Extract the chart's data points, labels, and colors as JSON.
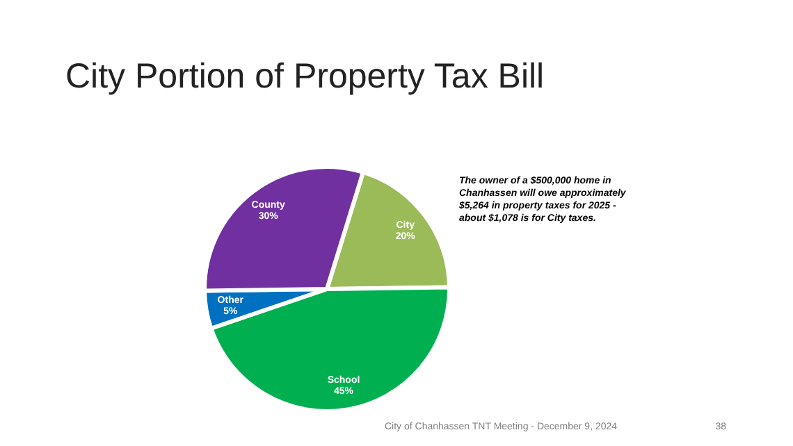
{
  "chart_data": {
    "type": "pie",
    "title": "City Portion of Property Tax Bill",
    "categories": [
      "City",
      "School",
      "Other",
      "County"
    ],
    "values": [
      20,
      45,
      5,
      30
    ],
    "value_labels": [
      "20%",
      "45%",
      "5%",
      "30%"
    ],
    "colors": [
      "#9bbb59",
      "#00b050",
      "#0070c0",
      "#7030a0"
    ],
    "annotations": [
      "The owner of a $500,000 home in\nChanhassen will owe approximately\n$5,264 in property taxes for  2025 -\nabout $1,078 is for City taxes.",
      "City of Chanhassen TNT Meeting - December 9, 2024",
      "38"
    ]
  }
}
